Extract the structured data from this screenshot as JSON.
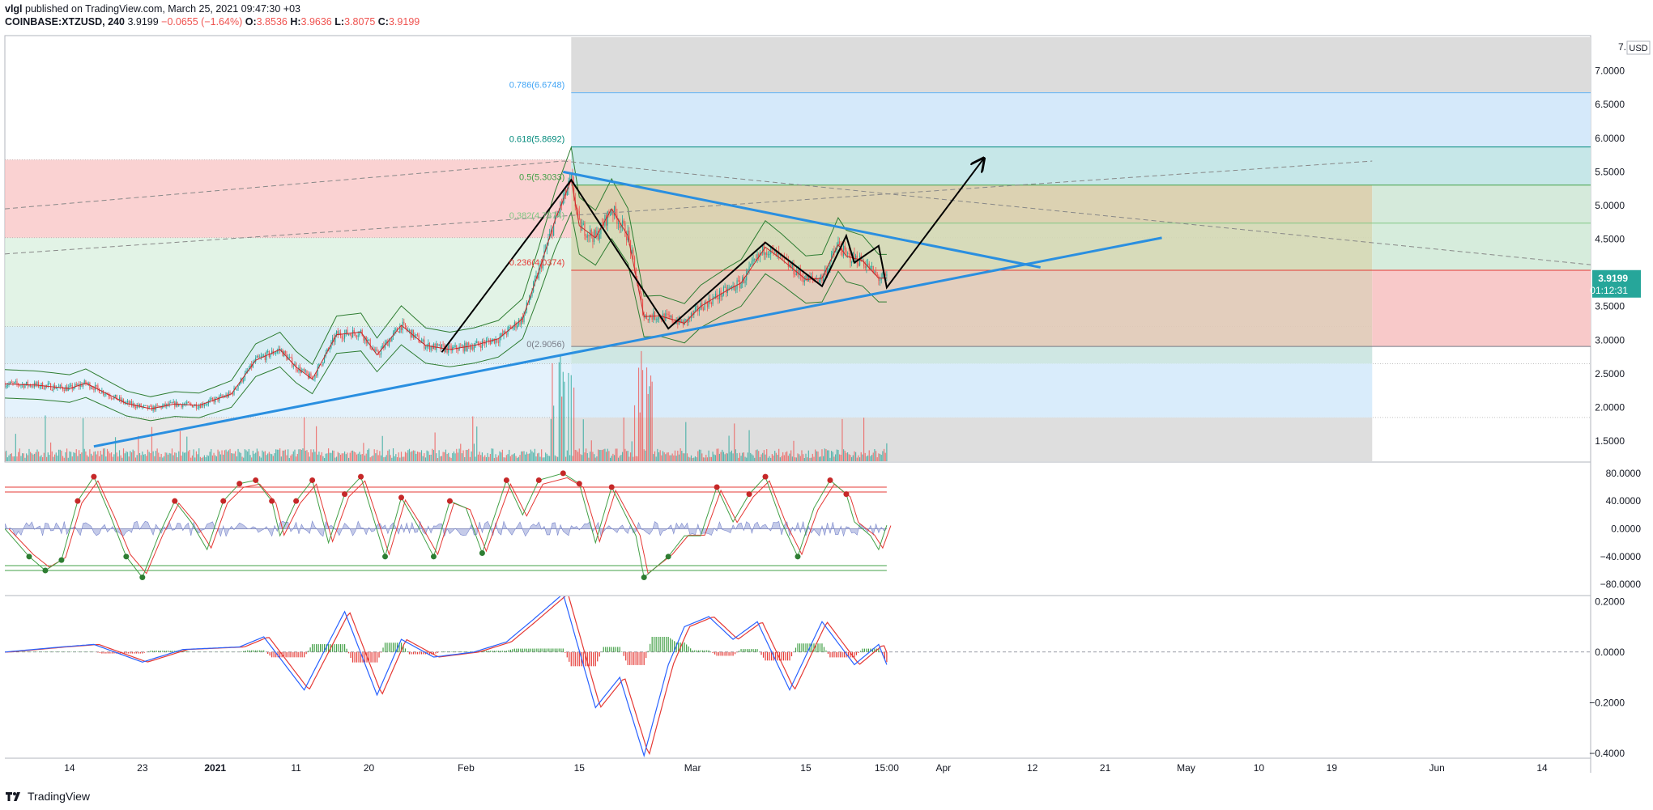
{
  "header": {
    "author": "vlgl",
    "published": "published on TradingView.com, March 25, 2021 09:47:30 +03",
    "symbol": "COINBASE:XTZUSD, 240",
    "last": "3.9199",
    "change": "−0.0655 (−1.64%)",
    "o_label": "O:",
    "o": "3.8536",
    "h_label": "H:",
    "h": "3.9636",
    "l_label": "L:",
    "l": "3.8075",
    "c_label": "C:",
    "c": "3.9199"
  },
  "footer": {
    "brand": "TradingView"
  },
  "price_axis": {
    "currency": "USD",
    "top_label": "7.",
    "ticks": [
      "7.0000",
      "6.5000",
      "6.0000",
      "5.5000",
      "5.0000",
      "4.5000",
      "3.5000",
      "3.0000",
      "2.5000",
      "2.0000",
      "1.5000"
    ],
    "last_price": "3.9199",
    "countdown": "01:12:31"
  },
  "osc_axis": {
    "ticks": [
      "80.0000",
      "40.0000",
      "0.0000",
      "−40.0000",
      "−80.0000"
    ]
  },
  "macd_axis": {
    "ticks": [
      "0.2000",
      "0.0000",
      "−0.2000",
      "−0.4000"
    ]
  },
  "time_axis": {
    "labels": [
      "14",
      "23",
      "2021",
      "11",
      "20",
      "Feb",
      "15",
      "Mar",
      "15",
      "15:00",
      "Apr",
      "12",
      "21",
      "May",
      "10",
      "19",
      "Jun",
      "14"
    ]
  },
  "fib_labels": [
    "0.786(6.6748)",
    "0.618(5.8692)",
    "0.5(5.3033)",
    "0.382(4.7374)",
    "0.236(4.0374)",
    "0(2.9056)"
  ],
  "colors": {
    "up": "#26a69a",
    "down": "#ef5350",
    "trendline": "#2a8fe0",
    "price_tag": "#26a69a",
    "macd": "#2962ff",
    "signal": "#e53935"
  },
  "chart_data": {
    "type": "candlestick",
    "xlim": [
      "2020-12-06",
      "2021-06-20"
    ],
    "ylim": [
      1.2,
      7.5
    ],
    "y_scale": "linear",
    "last_price": 3.9199,
    "price_path": [
      [
        "2020-12-06",
        2.35
      ],
      [
        "2020-12-10",
        2.33
      ],
      [
        "2020-12-14",
        2.28
      ],
      [
        "2020-12-16",
        2.36
      ],
      [
        "2020-12-19",
        2.18
      ],
      [
        "2020-12-21",
        2.06
      ],
      [
        "2020-12-24",
        1.98
      ],
      [
        "2020-12-27",
        2.05
      ],
      [
        "2020-12-30",
        2.03
      ],
      [
        "2021-01-03",
        2.2
      ],
      [
        "2021-01-06",
        2.7
      ],
      [
        "2021-01-09",
        2.86
      ],
      [
        "2021-01-11",
        2.6
      ],
      [
        "2021-01-13",
        2.42
      ],
      [
        "2021-01-16",
        3.08
      ],
      [
        "2021-01-19",
        3.12
      ],
      [
        "2021-01-21",
        2.78
      ],
      [
        "2021-01-24",
        3.22
      ],
      [
        "2021-01-27",
        2.92
      ],
      [
        "2021-01-30",
        2.86
      ],
      [
        "2021-02-02",
        2.92
      ],
      [
        "2021-02-05",
        3.02
      ],
      [
        "2021-02-08",
        3.32
      ],
      [
        "2021-02-10",
        4.02
      ],
      [
        "2021-02-12",
        4.78
      ],
      [
        "2021-02-14",
        5.38
      ],
      [
        "2021-02-15",
        4.7
      ],
      [
        "2021-02-17",
        4.52
      ],
      [
        "2021-02-19",
        4.95
      ],
      [
        "2021-02-21",
        4.55
      ],
      [
        "2021-02-23",
        3.35
      ],
      [
        "2021-02-25",
        3.36
      ],
      [
        "2021-02-28",
        3.25
      ],
      [
        "2021-03-02",
        3.5
      ],
      [
        "2021-03-05",
        3.72
      ],
      [
        "2021-03-07",
        3.85
      ],
      [
        "2021-03-10",
        4.38
      ],
      [
        "2021-03-12",
        4.2
      ],
      [
        "2021-03-15",
        3.9
      ],
      [
        "2021-03-17",
        3.92
      ],
      [
        "2021-03-19",
        4.42
      ],
      [
        "2021-03-20",
        4.25
      ],
      [
        "2021-03-22",
        4.18
      ],
      [
        "2021-03-24",
        3.92
      ],
      [
        "2021-03-25",
        3.9199
      ]
    ],
    "fib_retracement": {
      "levels": [
        {
          "ratio": 0,
          "price": 2.9056
        },
        {
          "ratio": 0.236,
          "price": 4.0374
        },
        {
          "ratio": 0.382,
          "price": 4.7374
        },
        {
          "ratio": 0.5,
          "price": 5.3033
        },
        {
          "ratio": 0.618,
          "price": 5.8692
        },
        {
          "ratio": 0.786,
          "price": 6.6748
        }
      ],
      "start": "2021-02-14",
      "end": "2021-05-24"
    },
    "horizontal_zones": [
      {
        "from": 4.52,
        "to": 5.68,
        "color": "#f8bfbf"
      },
      {
        "from": 3.2,
        "to": 4.52,
        "color": "#d6eedc"
      },
      {
        "from": 2.65,
        "to": 3.2,
        "color": "#c9e6ef"
      },
      {
        "from": 1.85,
        "to": 2.65,
        "color": "#d9ecfb"
      },
      {
        "from": 1.2,
        "to": 1.85,
        "color": "#dedede"
      }
    ],
    "trendlines": [
      {
        "from": [
          "2020-12-17",
          1.42
        ],
        "to": [
          "2021-04-28",
          4.52
        ]
      },
      {
        "from": [
          "2021-02-13",
          5.5
        ],
        "to": [
          "2021-04-13",
          4.08
        ]
      }
    ],
    "projection_path": [
      [
        "2021-01-29",
        2.82
      ],
      [
        "2021-02-14",
        5.38
      ],
      [
        "2021-02-26",
        3.17
      ],
      [
        "2021-03-10",
        4.45
      ],
      [
        "2021-03-17",
        3.8
      ],
      [
        "2021-03-20",
        4.55
      ],
      [
        "2021-03-21",
        4.15
      ],
      [
        "2021-03-24",
        4.4
      ],
      [
        "2021-03-25",
        3.78
      ],
      [
        "2021-04-06",
        5.7
      ]
    ],
    "stochastic_rsi": {
      "ylim": [
        -95,
        95
      ],
      "levels": [
        60,
        53,
        -53,
        -60
      ],
      "k": [
        [
          "2020-12-06",
          0
        ],
        [
          "2020-12-09",
          -40
        ],
        [
          "2020-12-11",
          -60
        ],
        [
          "2020-12-13",
          -45
        ],
        [
          "2020-12-15",
          40
        ],
        [
          "2020-12-17",
          75
        ],
        [
          "2020-12-19",
          20
        ],
        [
          "2020-12-21",
          -40
        ],
        [
          "2020-12-23",
          -70
        ],
        [
          "2020-12-25",
          -10
        ],
        [
          "2020-12-27",
          40
        ],
        [
          "2020-12-29",
          10
        ],
        [
          "2020-12-31",
          -30
        ],
        [
          "2021-01-02",
          40
        ],
        [
          "2021-01-04",
          65
        ],
        [
          "2021-01-06",
          70
        ],
        [
          "2021-01-08",
          40
        ],
        [
          "2021-01-09",
          -10
        ],
        [
          "2021-01-11",
          40
        ],
        [
          "2021-01-13",
          70
        ],
        [
          "2021-01-15",
          -20
        ],
        [
          "2021-01-17",
          50
        ],
        [
          "2021-01-19",
          75
        ],
        [
          "2021-01-22",
          -40
        ],
        [
          "2021-01-24",
          45
        ],
        [
          "2021-01-26",
          5
        ],
        [
          "2021-01-28",
          -40
        ],
        [
          "2021-01-30",
          40
        ],
        [
          "2021-02-01",
          30
        ],
        [
          "2021-02-03",
          -35
        ],
        [
          "2021-02-06",
          70
        ],
        [
          "2021-02-08",
          20
        ],
        [
          "2021-02-10",
          70
        ],
        [
          "2021-02-13",
          80
        ],
        [
          "2021-02-15",
          65
        ],
        [
          "2021-02-17",
          -20
        ],
        [
          "2021-02-19",
          60
        ],
        [
          "2021-02-22",
          -10
        ],
        [
          "2021-02-23",
          -70
        ],
        [
          "2021-02-26",
          -40
        ],
        [
          "2021-02-28",
          -10
        ],
        [
          "2021-03-02",
          -10
        ],
        [
          "2021-03-04",
          60
        ],
        [
          "2021-03-06",
          10
        ],
        [
          "2021-03-08",
          50
        ],
        [
          "2021-03-10",
          75
        ],
        [
          "2021-03-12",
          10
        ],
        [
          "2021-03-14",
          -40
        ],
        [
          "2021-03-16",
          30
        ],
        [
          "2021-03-18",
          70
        ],
        [
          "2021-03-20",
          50
        ],
        [
          "2021-03-21",
          10
        ],
        [
          "2021-03-23",
          -10
        ],
        [
          "2021-03-24",
          -30
        ],
        [
          "2021-03-25",
          5
        ]
      ]
    },
    "macd": {
      "ylim": [
        -0.42,
        0.22
      ],
      "macd": [
        [
          "2020-12-06",
          0
        ],
        [
          "2020-12-13",
          0.02
        ],
        [
          "2020-12-17",
          0.03
        ],
        [
          "2020-12-23",
          -0.04
        ],
        [
          "2020-12-28",
          0.01
        ],
        [
          "2021-01-04",
          0.02
        ],
        [
          "2021-01-07",
          0.06
        ],
        [
          "2021-01-12",
          -0.15
        ],
        [
          "2021-01-17",
          0.16
        ],
        [
          "2021-01-21",
          -0.17
        ],
        [
          "2021-01-24",
          0.05
        ],
        [
          "2021-01-28",
          -0.02
        ],
        [
          "2021-02-02",
          0
        ],
        [
          "2021-02-06",
          0.04
        ],
        [
          "2021-02-09",
          0.12
        ],
        [
          "2021-02-13",
          0.23
        ],
        [
          "2021-02-17",
          -0.22
        ],
        [
          "2021-02-20",
          -0.1
        ],
        [
          "2021-02-23",
          -0.41
        ],
        [
          "2021-02-26",
          -0.05
        ],
        [
          "2021-02-28",
          0.1
        ],
        [
          "2021-03-03",
          0.14
        ],
        [
          "2021-03-06",
          0.05
        ],
        [
          "2021-03-09",
          0.12
        ],
        [
          "2021-03-13",
          -0.15
        ],
        [
          "2021-03-17",
          0.12
        ],
        [
          "2021-03-21",
          -0.05
        ],
        [
          "2021-03-24",
          0.03
        ],
        [
          "2021-03-25",
          -0.05
        ]
      ]
    }
  }
}
